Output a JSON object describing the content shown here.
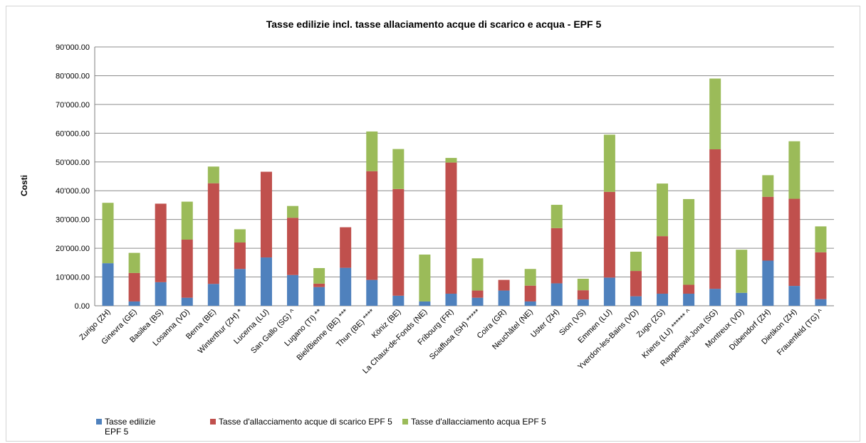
{
  "chart_data": {
    "type": "stacked-bar",
    "title": "Tasse edilizie incl. tasse allaciamento acque di scarico e acqua - EPF 5",
    "ylabel": "Costi",
    "xlabel": "",
    "ylim": [
      0,
      90000
    ],
    "yticks": [
      "0.00",
      "10'000.00",
      "20'000.00",
      "30'000.00",
      "40'000.00",
      "50'000.00",
      "60'000.00",
      "70'000.00",
      "80'000.00",
      "90'000.00"
    ],
    "grid": true,
    "legend_position": "bottom-left",
    "categories": [
      "Zurigo (ZH)",
      "Ginevra (GE)",
      "Basilea (BS)",
      "Losanna (VD)",
      "Berna (BE)",
      "Winterthur (ZH) *",
      "Lucerna (LU)",
      "San Gallo (SG) ^",
      "Lugano (TI) **",
      "Biel/Bienne (BE) ***",
      "Thun (BE) ****",
      "Köniz (BE)",
      "La Chaux-de-Fonds (NE)",
      "Fribourg (FR)",
      "Sciaffusa (SH) *****",
      "Coira (GR)",
      "Neuchâtel (NE)",
      "Uster (ZH)",
      "Sion (VS)",
      "Emmen (LU)",
      "Yverdon-les-Bains (VD)",
      "Zugo (ZG)",
      "Kriens (LU) ****** ^",
      "Rapperswil-Jona (SG)",
      "Montreux (VD)",
      "Dübendorf (ZH)",
      "Dietikon (ZH)",
      "Frauenfeld (TG) ^"
    ],
    "series": [
      {
        "name": "Tasse edilizie EPF 5",
        "color": "#4f81bd",
        "values": [
          14800,
          1500,
          8200,
          2800,
          7600,
          12800,
          16800,
          10700,
          6500,
          13200,
          9000,
          3500,
          1500,
          4200,
          2800,
          5300,
          1500,
          7800,
          2200,
          9800,
          3300,
          4200,
          4200,
          5900,
          4500,
          15700,
          6900,
          2300
        ]
      },
      {
        "name": "Tasse d'allacciamento acque di scarico EPF 5",
        "color": "#c0504d",
        "values": [
          0,
          9900,
          27300,
          20200,
          35000,
          9200,
          29800,
          19900,
          1200,
          14100,
          37800,
          37100,
          0,
          45600,
          2500,
          3700,
          5500,
          19200,
          3200,
          29800,
          8800,
          20000,
          3100,
          48500,
          0,
          22200,
          30300,
          16300
        ]
      },
      {
        "name": "Tasse d'allacciamento acqua EPF 5",
        "color": "#9bbb59",
        "values": [
          21000,
          7000,
          0,
          13200,
          5800,
          4600,
          0,
          4100,
          5400,
          0,
          13800,
          13900,
          16300,
          1600,
          11200,
          0,
          5800,
          8100,
          4000,
          19900,
          6700,
          18300,
          29800,
          24600,
          15000,
          7500,
          20000,
          9000
        ]
      }
    ]
  }
}
